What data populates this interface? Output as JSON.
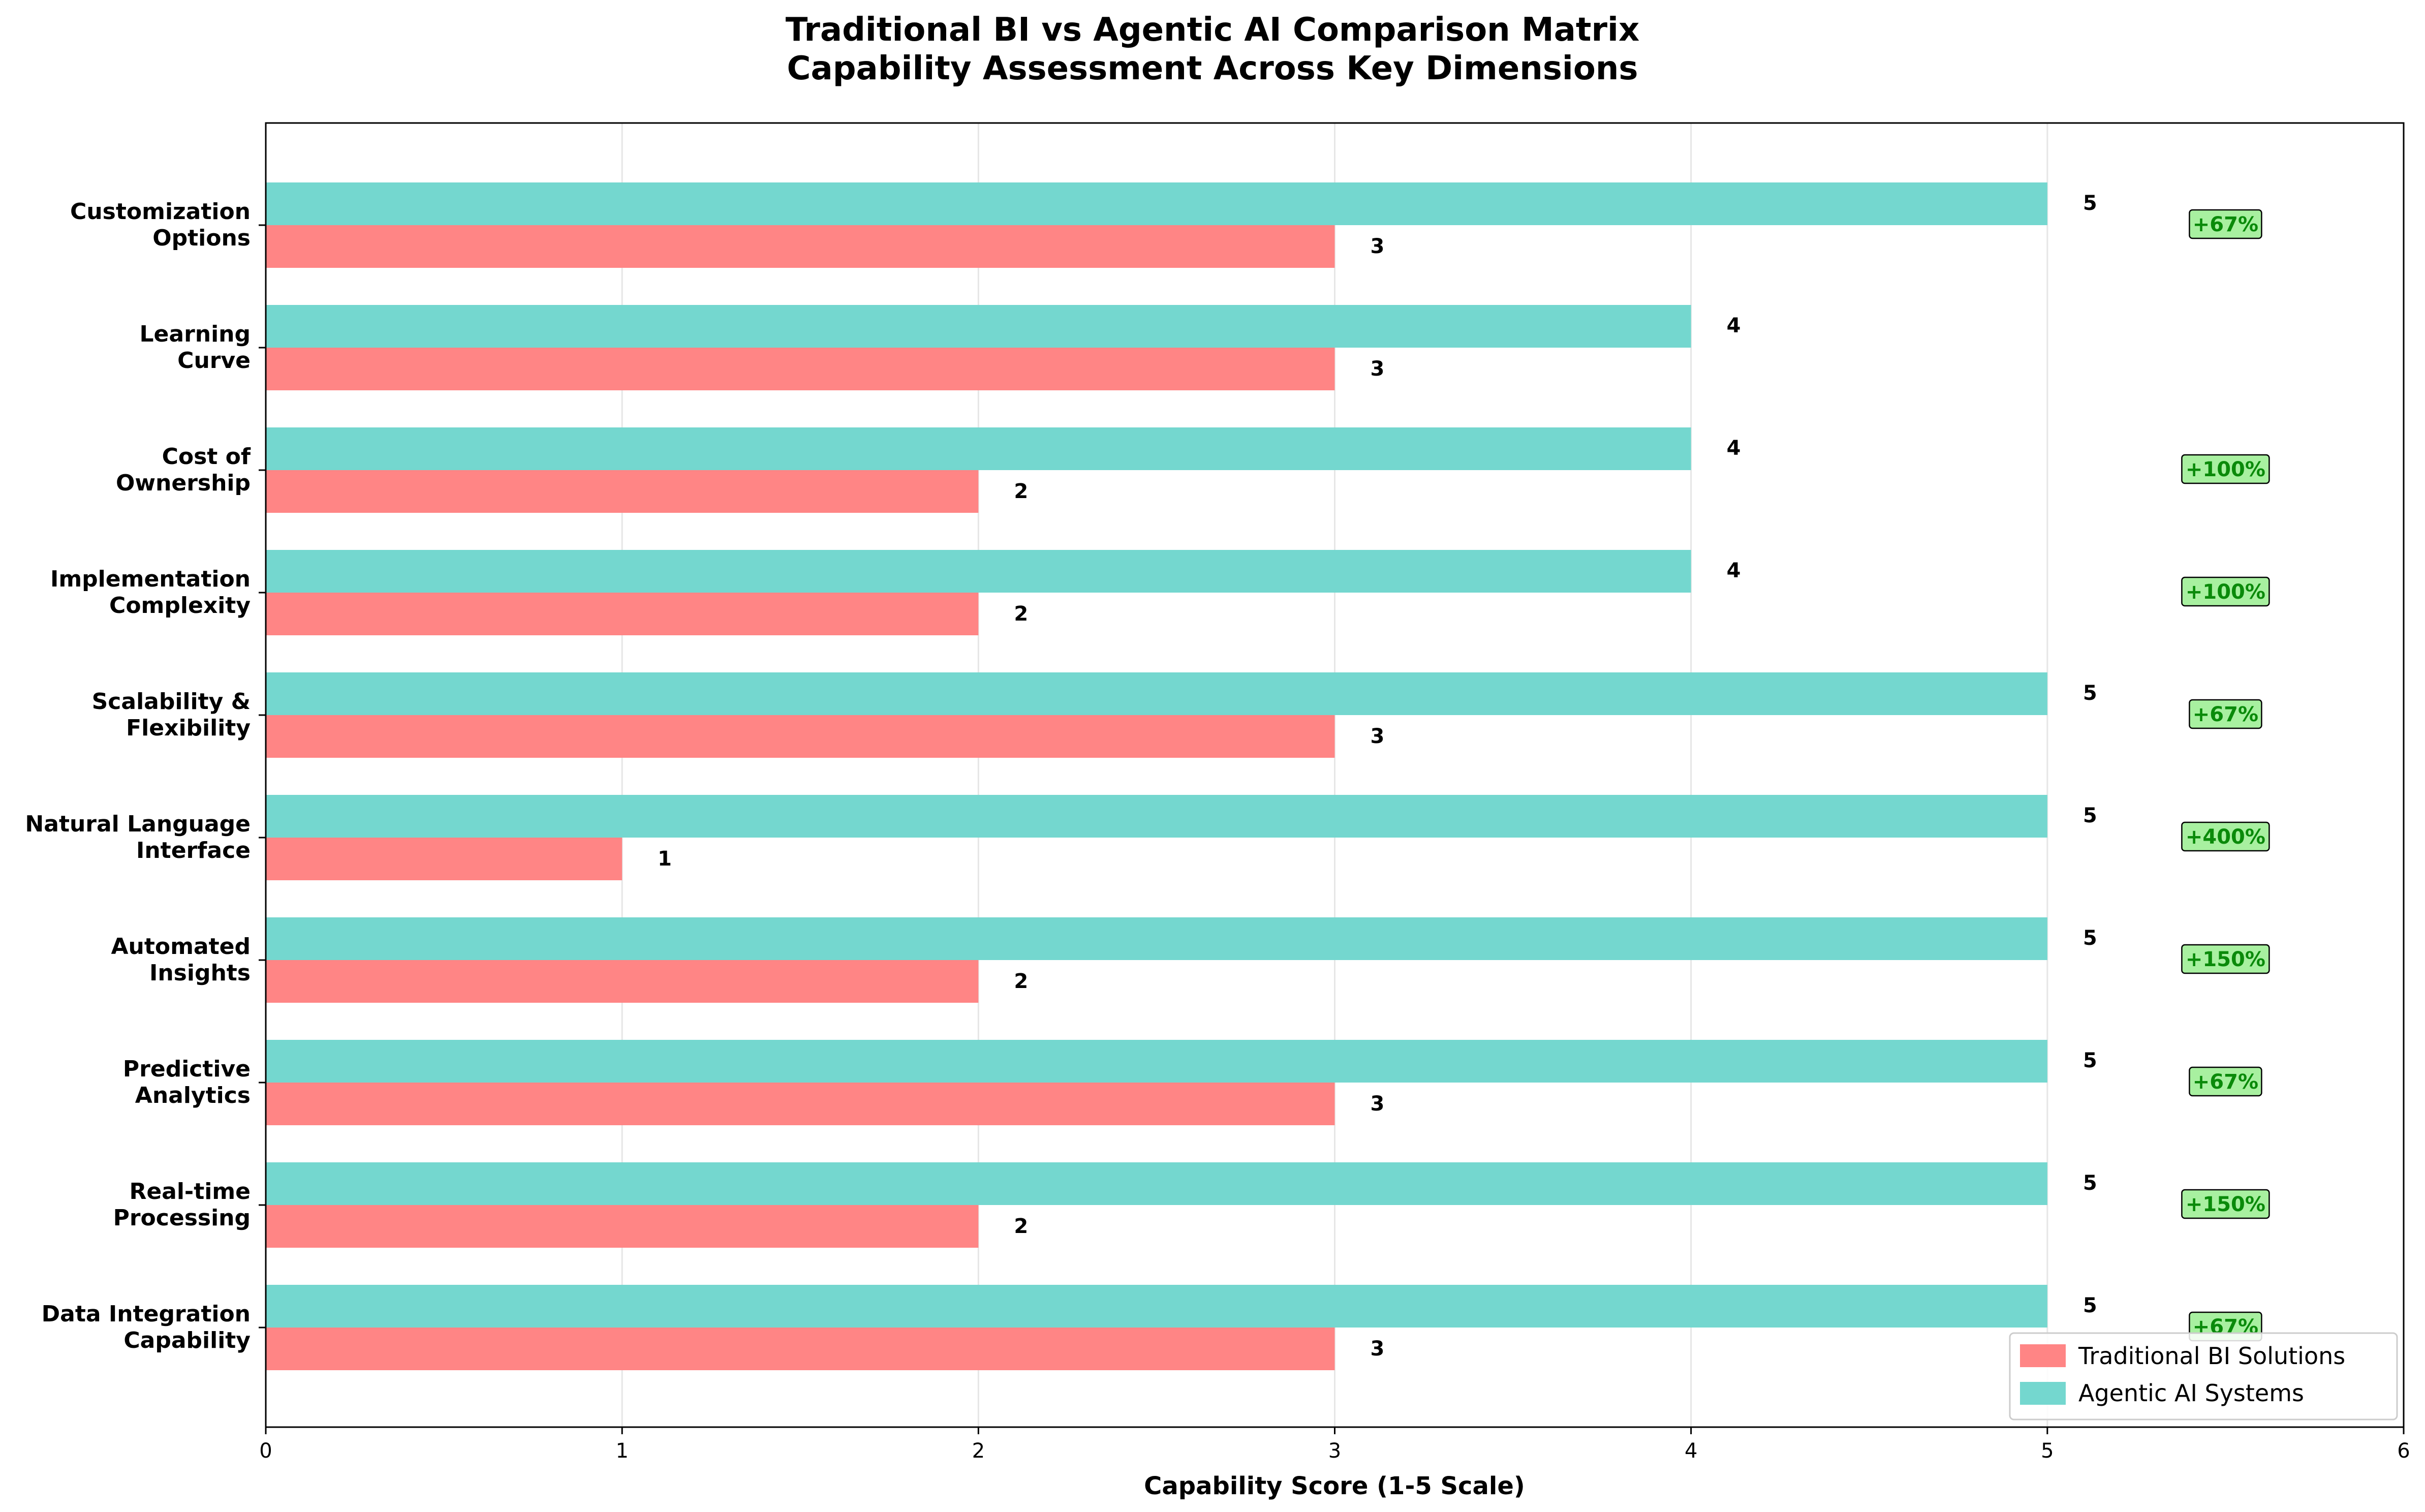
{
  "chart_data": {
    "type": "bar",
    "orientation": "horizontal",
    "title": "Traditional BI vs Agentic AI Comparison Matrix",
    "subtitle": "Capability Assessment Across Key Dimensions",
    "xlabel": "Capability Score (1-5 Scale)",
    "xlim": [
      0,
      6
    ],
    "xticks": [
      "0",
      "1",
      "2",
      "3",
      "4",
      "5",
      "6"
    ],
    "grid": "vertical",
    "legend_position": "bottom-right",
    "categories": [
      [
        "Customization",
        "Options"
      ],
      [
        "Learning",
        "Curve"
      ],
      [
        "Cost of",
        "Ownership"
      ],
      [
        "Implementation",
        "Complexity"
      ],
      [
        "Scalability &",
        "Flexibility"
      ],
      [
        "Natural Language",
        "Interface"
      ],
      [
        "Automated",
        "Insights"
      ],
      [
        "Predictive",
        "Analytics"
      ],
      [
        "Real-time",
        "Processing"
      ],
      [
        "Data Integration",
        "Capability"
      ]
    ],
    "series": [
      {
        "name": "Traditional BI Solutions",
        "color": "#ff8585",
        "values": [
          3,
          3,
          2,
          2,
          3,
          1,
          2,
          3,
          2,
          3
        ]
      },
      {
        "name": "Agentic AI Systems",
        "color": "#74d7cf",
        "values": [
          5,
          4,
          4,
          4,
          5,
          5,
          5,
          5,
          5,
          5
        ]
      }
    ],
    "value_labels": {
      "traditional": [
        "3",
        "3",
        "2",
        "2",
        "3",
        "1",
        "2",
        "3",
        "2",
        "3"
      ],
      "agentic": [
        "5",
        "4",
        "4",
        "4",
        "5",
        "5",
        "5",
        "5",
        "5",
        "5"
      ]
    },
    "improvement_labels": [
      "+67%",
      "",
      "+100%",
      "+100%",
      "+67%",
      "+400%",
      "+150%",
      "+67%",
      "+150%",
      "+67%"
    ],
    "improvement_colors": {
      "fill": "#a8f0a0",
      "text": "#0a8a0a"
    }
  }
}
